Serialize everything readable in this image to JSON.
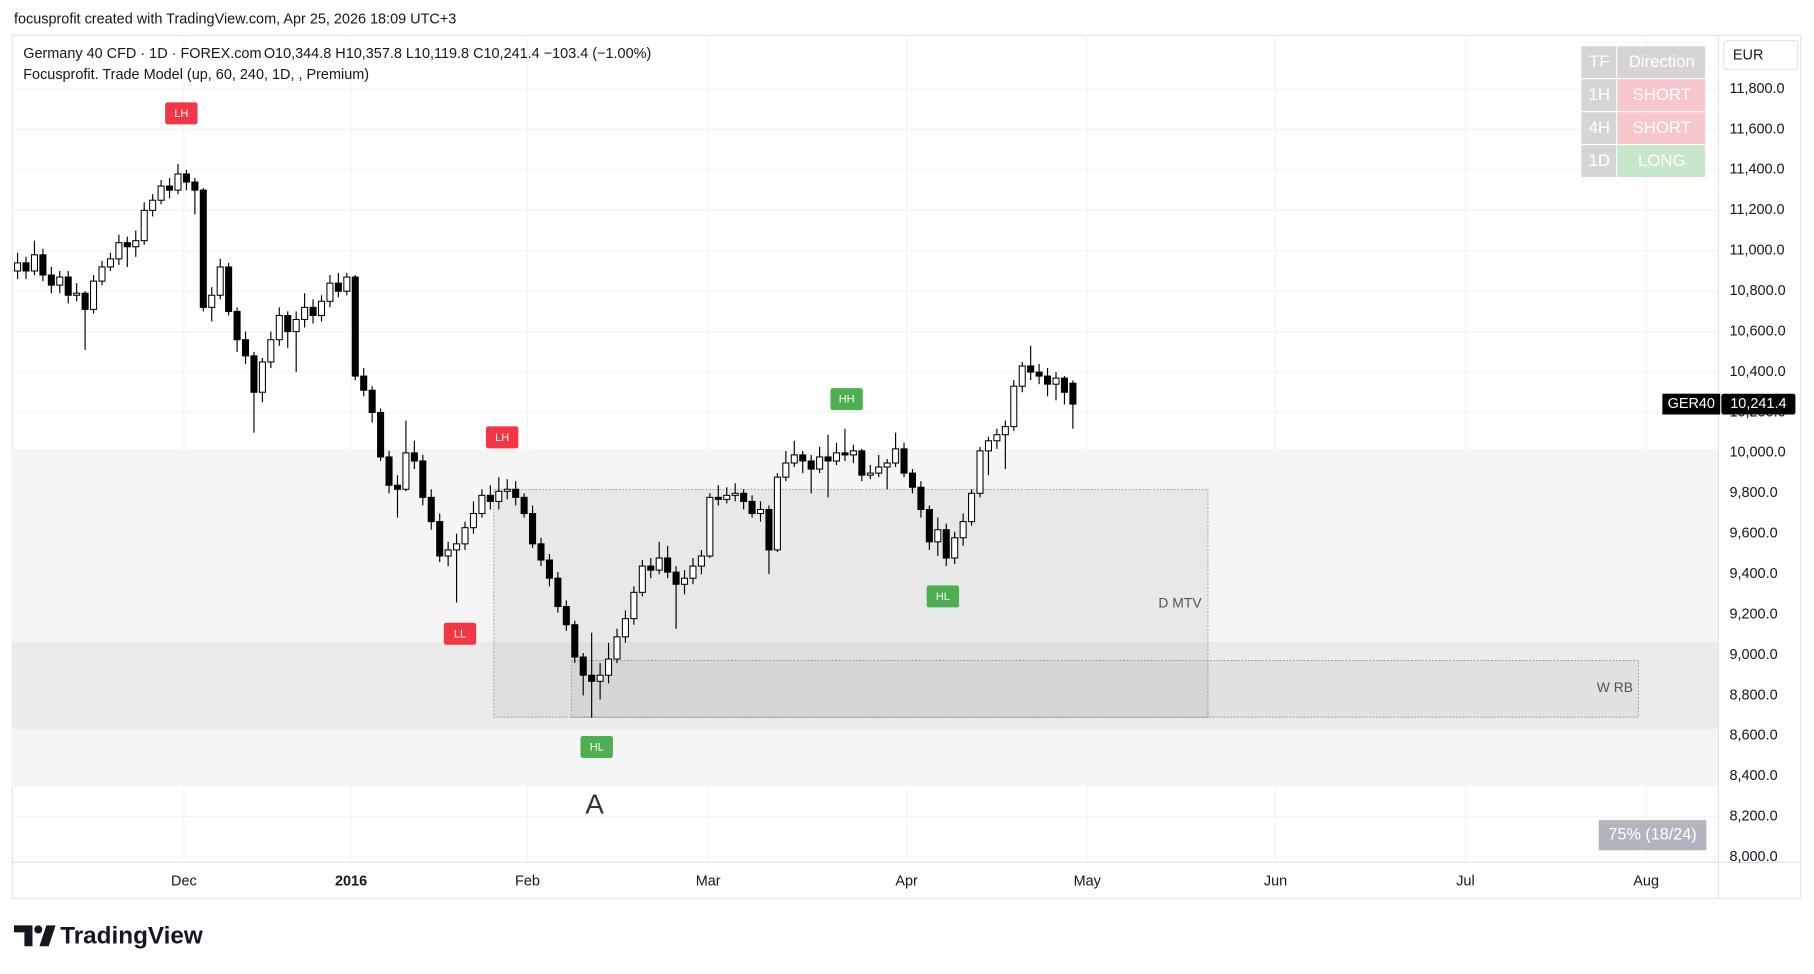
{
  "credit": "focusprofit created with TradingView.com, Apr 25, 2026 18:09 UTC+3",
  "branding": "TradingView",
  "table": {
    "columns": [
      "TF",
      "Direction"
    ],
    "rows": [
      [
        "1H",
        "SHORT"
      ],
      [
        "4H",
        "SHORT"
      ],
      [
        "1D",
        "LONG"
      ]
    ]
  },
  "chart_data": {
    "type": "candlestick",
    "title": "Germany 40 CFD · 1D · FOREX.com",
    "ohlc_text": "O10,344.8 H10,357.8 L10,119.8 C10,241.4 −103.4 (−1.00%)",
    "indicator": "Focusprofit. Trade Model (up, 60, 240, 1D, , Premium)",
    "currency": "EUR",
    "last_price": {
      "symbol": "GER40",
      "label": "10,241.4"
    },
    "stat": "75% (18/24)",
    "marker_text": "A",
    "up_color": "#ffffff",
    "down_color": "#000000",
    "grid": true,
    "annotations": [
      {
        "text": "LH",
        "color": "#f23645"
      },
      {
        "text": "LH",
        "color": "#f23645"
      },
      {
        "text": "LL",
        "color": "#f23645"
      },
      {
        "text": "HL",
        "color": "#4caf50"
      },
      {
        "text": "HH",
        "color": "#4caf50"
      },
      {
        "text": "HL",
        "color": "#4caf50"
      }
    ],
    "zones": [
      {
        "range": [
          8349,
          10020
        ]
      },
      {
        "range": [
          8635,
          9064
        ]
      },
      {
        "label": "D MTV",
        "range": [
          8692,
          9820
        ]
      },
      {
        "label": "W RB",
        "range": [
          8692,
          8973
        ]
      }
    ],
    "xlim": [
      -0.7,
      201.4
    ],
    "xticks": [
      {
        "value": 19.7,
        "label": "Dec"
      },
      {
        "value": 39.5,
        "label": "2016"
      },
      {
        "value": 60.4,
        "label": "Feb"
      },
      {
        "value": 81.8,
        "label": "Mar"
      },
      {
        "value": 105.3,
        "label": "Apr"
      },
      {
        "value": 126.7,
        "label": "May"
      },
      {
        "value": 149,
        "label": "Jun"
      },
      {
        "value": 171.5,
        "label": "Jul"
      },
      {
        "value": 192.9,
        "label": "Aug"
      }
    ],
    "ylim": [
      7977,
      12069
    ],
    "yticks": [
      {
        "value": 8000,
        "label": "8,000.0"
      },
      {
        "value": 8200,
        "label": "8,200.0"
      },
      {
        "value": 8400,
        "label": "8,400.0"
      },
      {
        "value": 8600,
        "label": "8,600.0"
      },
      {
        "value": 8800,
        "label": "8,800.0"
      },
      {
        "value": 9000,
        "label": "9,000.0"
      },
      {
        "value": 9200,
        "label": "9,200.0"
      },
      {
        "value": 9400,
        "label": "9,400.0"
      },
      {
        "value": 9600,
        "label": "9,600.0"
      },
      {
        "value": 9800,
        "label": "9,800.0"
      },
      {
        "value": 10000,
        "label": "10,000.0"
      },
      {
        "value": 10200,
        "label": "10,200.0"
      },
      {
        "value": 10400,
        "label": "10,400.0"
      },
      {
        "value": 10600,
        "label": "10,600.0"
      },
      {
        "value": 10800,
        "label": "10,800.0"
      },
      {
        "value": 11000,
        "label": "11,000.0"
      },
      {
        "value": 11200,
        "label": "11,200.0"
      },
      {
        "value": 11400,
        "label": "11,400.0"
      },
      {
        "value": 11600,
        "label": "11,600.0"
      },
      {
        "value": 11800,
        "label": "11,800.0"
      }
    ],
    "candles": [
      [
        10900,
        10990,
        10860,
        10940
      ],
      [
        10940,
        10970,
        10860,
        10900
      ],
      [
        10900,
        11050,
        10880,
        10980
      ],
      [
        10980,
        11010,
        10850,
        10880
      ],
      [
        10880,
        10920,
        10790,
        10830
      ],
      [
        10830,
        10900,
        10790,
        10870
      ],
      [
        10870,
        10900,
        10740,
        10780
      ],
      [
        10780,
        10840,
        10750,
        10790
      ],
      [
        10790,
        10800,
        10510,
        10710
      ],
      [
        10710,
        10880,
        10690,
        10850
      ],
      [
        10850,
        10950,
        10830,
        10920
      ],
      [
        10920,
        10990,
        10900,
        10960
      ],
      [
        10960,
        11080,
        10930,
        11040
      ],
      [
        11040,
        11070,
        10920,
        11020
      ],
      [
        11020,
        11100,
        10970,
        11050
      ],
      [
        11050,
        11240,
        11030,
        11200
      ],
      [
        11200,
        11280,
        11170,
        11250
      ],
      [
        11250,
        11350,
        11230,
        11320
      ],
      [
        11320,
        11360,
        11260,
        11300
      ],
      [
        11300,
        11430,
        11280,
        11380
      ],
      [
        11380,
        11400,
        11300,
        11340
      ],
      [
        11340,
        11360,
        11180,
        11300
      ],
      [
        11300,
        11310,
        10700,
        10720
      ],
      [
        10720,
        10820,
        10650,
        10780
      ],
      [
        10780,
        10960,
        10760,
        10920
      ],
      [
        10920,
        10940,
        10680,
        10700
      ],
      [
        10700,
        10720,
        10500,
        10560
      ],
      [
        10560,
        10600,
        10440,
        10480
      ],
      [
        10480,
        10500,
        10100,
        10300
      ],
      [
        10300,
        10470,
        10250,
        10450
      ],
      [
        10450,
        10600,
        10420,
        10560
      ],
      [
        10560,
        10720,
        10530,
        10680
      ],
      [
        10680,
        10700,
        10520,
        10600
      ],
      [
        10600,
        10700,
        10400,
        10660
      ],
      [
        10660,
        10790,
        10620,
        10720
      ],
      [
        10720,
        10760,
        10640,
        10680
      ],
      [
        10680,
        10780,
        10650,
        10750
      ],
      [
        10750,
        10880,
        10720,
        10840
      ],
      [
        10840,
        10890,
        10770,
        10800
      ],
      [
        10800,
        10890,
        10780,
        10870
      ],
      [
        10870,
        10880,
        10360,
        10380
      ],
      [
        10380,
        10420,
        10280,
        10310
      ],
      [
        10310,
        10330,
        10150,
        10200
      ],
      [
        10200,
        10220,
        9960,
        9980
      ],
      [
        9980,
        10010,
        9800,
        9840
      ],
      [
        9840,
        9890,
        9680,
        9820
      ],
      [
        9820,
        10160,
        9810,
        10000
      ],
      [
        10000,
        10060,
        9920,
        9960
      ],
      [
        9960,
        9990,
        9740,
        9780
      ],
      [
        9780,
        9820,
        9620,
        9660
      ],
      [
        9660,
        9700,
        9460,
        9490
      ],
      [
        9490,
        9560,
        9440,
        9520
      ],
      [
        9520,
        9600,
        9260,
        9550
      ],
      [
        9550,
        9660,
        9520,
        9630
      ],
      [
        9630,
        9760,
        9600,
        9700
      ],
      [
        9700,
        9820,
        9680,
        9790
      ],
      [
        9790,
        9840,
        9720,
        9760
      ],
      [
        9760,
        9880,
        9720,
        9810
      ],
      [
        9810,
        9870,
        9770,
        9820
      ],
      [
        9820,
        9860,
        9740,
        9780
      ],
      [
        9780,
        9800,
        9680,
        9700
      ],
      [
        9700,
        9740,
        9530,
        9550
      ],
      [
        9550,
        9580,
        9440,
        9470
      ],
      [
        9470,
        9500,
        9340,
        9380
      ],
      [
        9380,
        9410,
        9210,
        9240
      ],
      [
        9240,
        9270,
        9120,
        9150
      ],
      [
        9150,
        9170,
        8960,
        8990
      ],
      [
        8990,
        9010,
        8800,
        8900
      ],
      [
        8900,
        9110,
        8690,
        8870
      ],
      [
        8870,
        8960,
        8780,
        8900
      ],
      [
        8900,
        9060,
        8860,
        8980
      ],
      [
        8980,
        9130,
        8960,
        9090
      ],
      [
        9090,
        9220,
        9060,
        9180
      ],
      [
        9180,
        9340,
        9150,
        9310
      ],
      [
        9310,
        9470,
        9290,
        9440
      ],
      [
        9440,
        9480,
        9380,
        9420
      ],
      [
        9420,
        9560,
        9400,
        9480
      ],
      [
        9480,
        9540,
        9380,
        9410
      ],
      [
        9410,
        9440,
        9130,
        9350
      ],
      [
        9350,
        9420,
        9300,
        9380
      ],
      [
        9380,
        9480,
        9350,
        9440
      ],
      [
        9440,
        9520,
        9400,
        9490
      ],
      [
        9490,
        9800,
        9480,
        9780
      ],
      [
        9780,
        9840,
        9740,
        9770
      ],
      [
        9770,
        9830,
        9750,
        9790
      ],
      [
        9790,
        9850,
        9760,
        9800
      ],
      [
        9800,
        9820,
        9720,
        9760
      ],
      [
        9760,
        9790,
        9680,
        9700
      ],
      [
        9700,
        9760,
        9660,
        9720
      ],
      [
        9720,
        9740,
        9400,
        9520
      ],
      [
        9520,
        9900,
        9510,
        9880
      ],
      [
        9880,
        10010,
        9860,
        9950
      ],
      [
        9950,
        10060,
        9930,
        9990
      ],
      [
        9990,
        10010,
        9900,
        9960
      ],
      [
        9960,
        9990,
        9800,
        9920
      ],
      [
        9920,
        10030,
        9900,
        9980
      ],
      [
        9980,
        10090,
        9780,
        9960
      ],
      [
        9960,
        10050,
        9940,
        10000
      ],
      [
        10000,
        10120,
        9960,
        9990
      ],
      [
        9990,
        10040,
        9950,
        10010
      ],
      [
        10010,
        10020,
        9860,
        9890
      ],
      [
        9890,
        9940,
        9870,
        9900
      ],
      [
        9900,
        9990,
        9880,
        9930
      ],
      [
        9930,
        9970,
        9820,
        9950
      ],
      [
        9950,
        10100,
        9930,
        10020
      ],
      [
        10020,
        10050,
        9880,
        9900
      ],
      [
        9900,
        9920,
        9800,
        9830
      ],
      [
        9830,
        9860,
        9680,
        9720
      ],
      [
        9720,
        9740,
        9520,
        9560
      ],
      [
        9560,
        9680,
        9490,
        9620
      ],
      [
        9620,
        9650,
        9440,
        9480
      ],
      [
        9480,
        9610,
        9450,
        9580
      ],
      [
        9580,
        9700,
        9540,
        9660
      ],
      [
        9660,
        9820,
        9640,
        9800
      ],
      [
        9800,
        10030,
        9780,
        10010
      ],
      [
        10010,
        10080,
        9890,
        10060
      ],
      [
        10060,
        10120,
        10020,
        10090
      ],
      [
        10090,
        10160,
        9920,
        10130
      ],
      [
        10130,
        10360,
        10110,
        10330
      ],
      [
        10330,
        10450,
        10300,
        10430
      ],
      [
        10430,
        10530,
        10360,
        10400
      ],
      [
        10400,
        10440,
        10340,
        10380
      ],
      [
        10380,
        10420,
        10280,
        10340
      ],
      [
        10340,
        10400,
        10260,
        10370
      ],
      [
        10370,
        10380,
        10240,
        10300
      ],
      [
        10344.8,
        10357.8,
        10119.8,
        10241.4
      ]
    ]
  }
}
